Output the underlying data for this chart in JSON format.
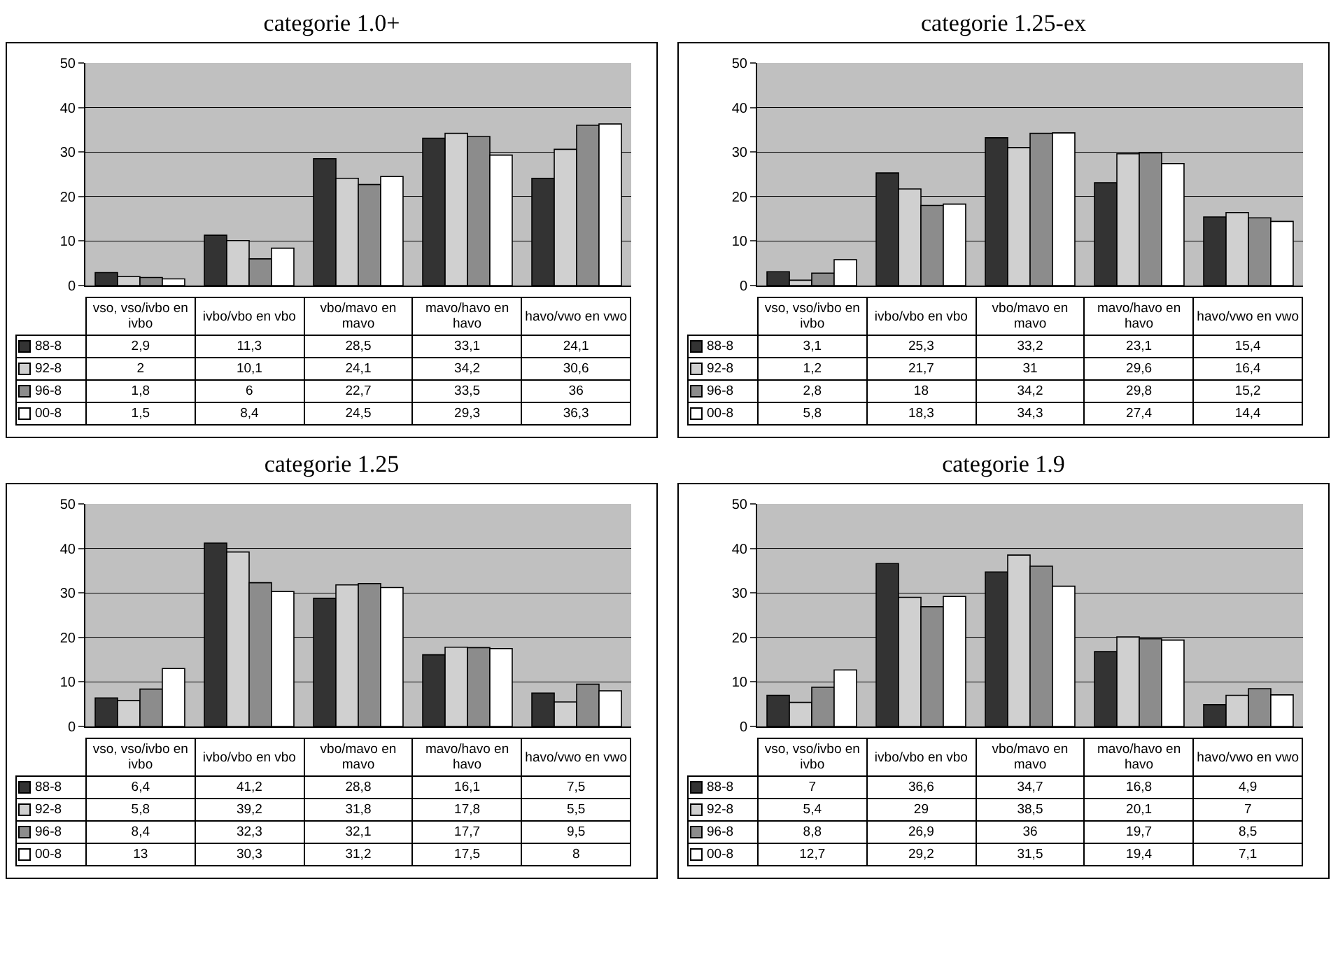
{
  "chart_data": [
    {
      "type": "bar",
      "title": "categorie 1.0+",
      "categories": [
        "vso, vso/ivbo en ivbo",
        "ivbo/vbo en vbo",
        "vbo/mavo en mavo",
        "mavo/havo en havo",
        "havo/vwo en vwo"
      ],
      "series": [
        {
          "name": "88-8",
          "color": "#333333",
          "values": [
            2.9,
            11.3,
            28.5,
            33.1,
            24.1
          ],
          "value_labels": [
            "2,9",
            "11,3",
            "28,5",
            "33,1",
            "24,1"
          ]
        },
        {
          "name": "92-8",
          "color": "#d0d0d0",
          "values": [
            2,
            10.1,
            24.1,
            34.2,
            30.6
          ],
          "value_labels": [
            "2",
            "10,1",
            "24,1",
            "34,2",
            "30,6"
          ]
        },
        {
          "name": "96-8",
          "color": "#8c8c8c",
          "values": [
            1.8,
            6,
            22.7,
            33.5,
            36
          ],
          "value_labels": [
            "1,8",
            "6",
            "22,7",
            "33,5",
            "36"
          ]
        },
        {
          "name": "00-8",
          "color": "#ffffff",
          "values": [
            1.5,
            8.4,
            24.5,
            29.3,
            36.3
          ],
          "value_labels": [
            "1,5",
            "8,4",
            "24,5",
            "29,3",
            "36,3"
          ]
        }
      ],
      "ylim": [
        0,
        50
      ],
      "yticks": [
        0,
        10,
        20,
        30,
        40,
        50
      ],
      "grid": "y",
      "legend": "bottom left"
    },
    {
      "type": "bar",
      "title": "categorie 1.25-ex",
      "categories": [
        "vso, vso/ivbo en ivbo",
        "ivbo/vbo en vbo",
        "vbo/mavo en mavo",
        "mavo/havo en havo",
        "havo/vwo en vwo"
      ],
      "series": [
        {
          "name": "88-8",
          "color": "#333333",
          "values": [
            3.1,
            25.3,
            33.2,
            23.1,
            15.4
          ],
          "value_labels": [
            "3,1",
            "25,3",
            "33,2",
            "23,1",
            "15,4"
          ]
        },
        {
          "name": "92-8",
          "color": "#d0d0d0",
          "values": [
            1.2,
            21.7,
            31,
            29.6,
            16.4
          ],
          "value_labels": [
            "1,2",
            "21,7",
            "31",
            "29,6",
            "16,4"
          ]
        },
        {
          "name": "96-8",
          "color": "#8c8c8c",
          "values": [
            2.8,
            18,
            34.2,
            29.8,
            15.2
          ],
          "value_labels": [
            "2,8",
            "18",
            "34,2",
            "29,8",
            "15,2"
          ]
        },
        {
          "name": "00-8",
          "color": "#ffffff",
          "values": [
            5.8,
            18.3,
            34.3,
            27.4,
            14.4
          ],
          "value_labels": [
            "5,8",
            "18,3",
            "34,3",
            "27,4",
            "14,4"
          ]
        }
      ],
      "ylim": [
        0,
        50
      ],
      "yticks": [
        0,
        10,
        20,
        30,
        40,
        50
      ],
      "grid": "y",
      "legend": "bottom left"
    },
    {
      "type": "bar",
      "title": "categorie 1.25",
      "categories": [
        "vso, vso/ivbo en ivbo",
        "ivbo/vbo en vbo",
        "vbo/mavo en mavo",
        "mavo/havo en havo",
        "havo/vwo en vwo"
      ],
      "series": [
        {
          "name": "88-8",
          "color": "#333333",
          "values": [
            6.4,
            41.2,
            28.8,
            16.1,
            7.5
          ],
          "value_labels": [
            "6,4",
            "41,2",
            "28,8",
            "16,1",
            "7,5"
          ]
        },
        {
          "name": "92-8",
          "color": "#d0d0d0",
          "values": [
            5.8,
            39.2,
            31.8,
            17.8,
            5.5
          ],
          "value_labels": [
            "5,8",
            "39,2",
            "31,8",
            "17,8",
            "5,5"
          ]
        },
        {
          "name": "96-8",
          "color": "#8c8c8c",
          "values": [
            8.4,
            32.3,
            32.1,
            17.7,
            9.5
          ],
          "value_labels": [
            "8,4",
            "32,3",
            "32,1",
            "17,7",
            "9,5"
          ]
        },
        {
          "name": "00-8",
          "color": "#ffffff",
          "values": [
            13,
            30.3,
            31.2,
            17.5,
            8
          ],
          "value_labels": [
            "13",
            "30,3",
            "31,2",
            "17,5",
            "8"
          ]
        }
      ],
      "ylim": [
        0,
        50
      ],
      "yticks": [
        0,
        10,
        20,
        30,
        40,
        50
      ],
      "grid": "y",
      "legend": "bottom left"
    },
    {
      "type": "bar",
      "title": "categorie 1.9",
      "categories": [
        "vso, vso/ivbo en ivbo",
        "ivbo/vbo en vbo",
        "vbo/mavo en mavo",
        "mavo/havo en havo",
        "havo/vwo en vwo"
      ],
      "series": [
        {
          "name": "88-8",
          "color": "#333333",
          "values": [
            7,
            36.6,
            34.7,
            16.8,
            4.9
          ],
          "value_labels": [
            "7",
            "36,6",
            "34,7",
            "16,8",
            "4,9"
          ]
        },
        {
          "name": "92-8",
          "color": "#d0d0d0",
          "values": [
            5.4,
            29,
            38.5,
            20.1,
            7
          ],
          "value_labels": [
            "5,4",
            "29",
            "38,5",
            "20,1",
            "7"
          ]
        },
        {
          "name": "96-8",
          "color": "#8c8c8c",
          "values": [
            8.8,
            26.9,
            36,
            19.7,
            8.5
          ],
          "value_labels": [
            "8,8",
            "26,9",
            "36",
            "19,7",
            "8,5"
          ]
        },
        {
          "name": "00-8",
          "color": "#ffffff",
          "values": [
            12.7,
            29.2,
            31.5,
            19.4,
            7.1
          ],
          "value_labels": [
            "12,7",
            "29,2",
            "31,5",
            "19,4",
            "7,1"
          ]
        }
      ],
      "ylim": [
        0,
        50
      ],
      "yticks": [
        0,
        10,
        20,
        30,
        40,
        50
      ],
      "grid": "y",
      "legend": "bottom left"
    }
  ]
}
